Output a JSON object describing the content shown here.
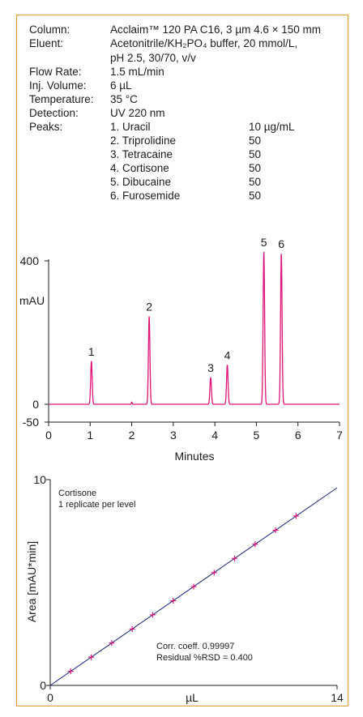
{
  "conditions": {
    "column_label": "Column:",
    "column_value": "Acclaim™ 120 PA C16, 3 µm 4.6 × 150 mm",
    "eluent_label": "Eluent:",
    "eluent_value_1": "Acetonitrile/KH₂PO₄ buffer, 20 mmol/L,",
    "eluent_value_2": "pH 2.5,  30/70, v/v",
    "flow_label": "Flow Rate:",
    "flow_value": "1.5 mL/min",
    "inj_label": "Inj. Volume:",
    "inj_value": "6 µL",
    "temp_label": "Temperature:",
    "temp_value": "35 °C",
    "det_label": "Detection:",
    "det_value": "UV 220 nm",
    "peaks_label": "Peaks:",
    "peaks": [
      {
        "name": "1. Uracil",
        "conc": "10 µg/mL"
      },
      {
        "name": "2. Triprolidine",
        "conc": "50"
      },
      {
        "name": "3. Tetracaine",
        "conc": "50"
      },
      {
        "name": "4. Cortisone",
        "conc": "50"
      },
      {
        "name": "5. Dibucaine",
        "conc": "50"
      },
      {
        "name": "6. Furosemide",
        "conc": "50"
      }
    ]
  },
  "chart_data": [
    {
      "type": "line",
      "xlabel": "Minutes",
      "ylabel": "mAU",
      "xlim": [
        0,
        7
      ],
      "ylim": [
        -50,
        400
      ],
      "x_ticks": [
        0,
        1,
        2,
        3,
        4,
        5,
        6,
        7
      ],
      "y_tick_labels": [
        "400",
        "0",
        "-50"
      ],
      "line_color": "#e0157a",
      "peaks": [
        {
          "label": "1",
          "time": 1.03,
          "height": 120
        },
        {
          "label": "2",
          "time": 2.42,
          "height": 245
        },
        {
          "label": "3",
          "time": 3.9,
          "height": 75
        },
        {
          "label": "4",
          "time": 4.3,
          "height": 110
        },
        {
          "label": "5",
          "time": 5.18,
          "height": 425
        },
        {
          "label": "6",
          "time": 5.6,
          "height": 420
        }
      ]
    },
    {
      "type": "scatter",
      "xlabel": "µL",
      "ylabel": "Area  [mAU*min]",
      "xlim": [
        0,
        14
      ],
      "ylim": [
        0,
        10
      ],
      "x_tick_labels": [
        "0",
        "14"
      ],
      "y_tick_labels": [
        "10",
        "0"
      ],
      "annotation_title": "Cortisone",
      "annotation_subtitle": "1 replicate per level",
      "corr_text": "Corr. coeff. 0.99997",
      "rsd_text": "Residual %RSD = 0.400",
      "line_color": "#1a237e",
      "marker_color": "#e0157a",
      "x": [
        1,
        2,
        3,
        4,
        5,
        6,
        7,
        8,
        9,
        10,
        11,
        12
      ],
      "y": [
        0.69,
        1.37,
        2.06,
        2.74,
        3.43,
        4.11,
        4.8,
        5.48,
        6.17,
        6.86,
        7.54,
        8.23
      ]
    }
  ]
}
